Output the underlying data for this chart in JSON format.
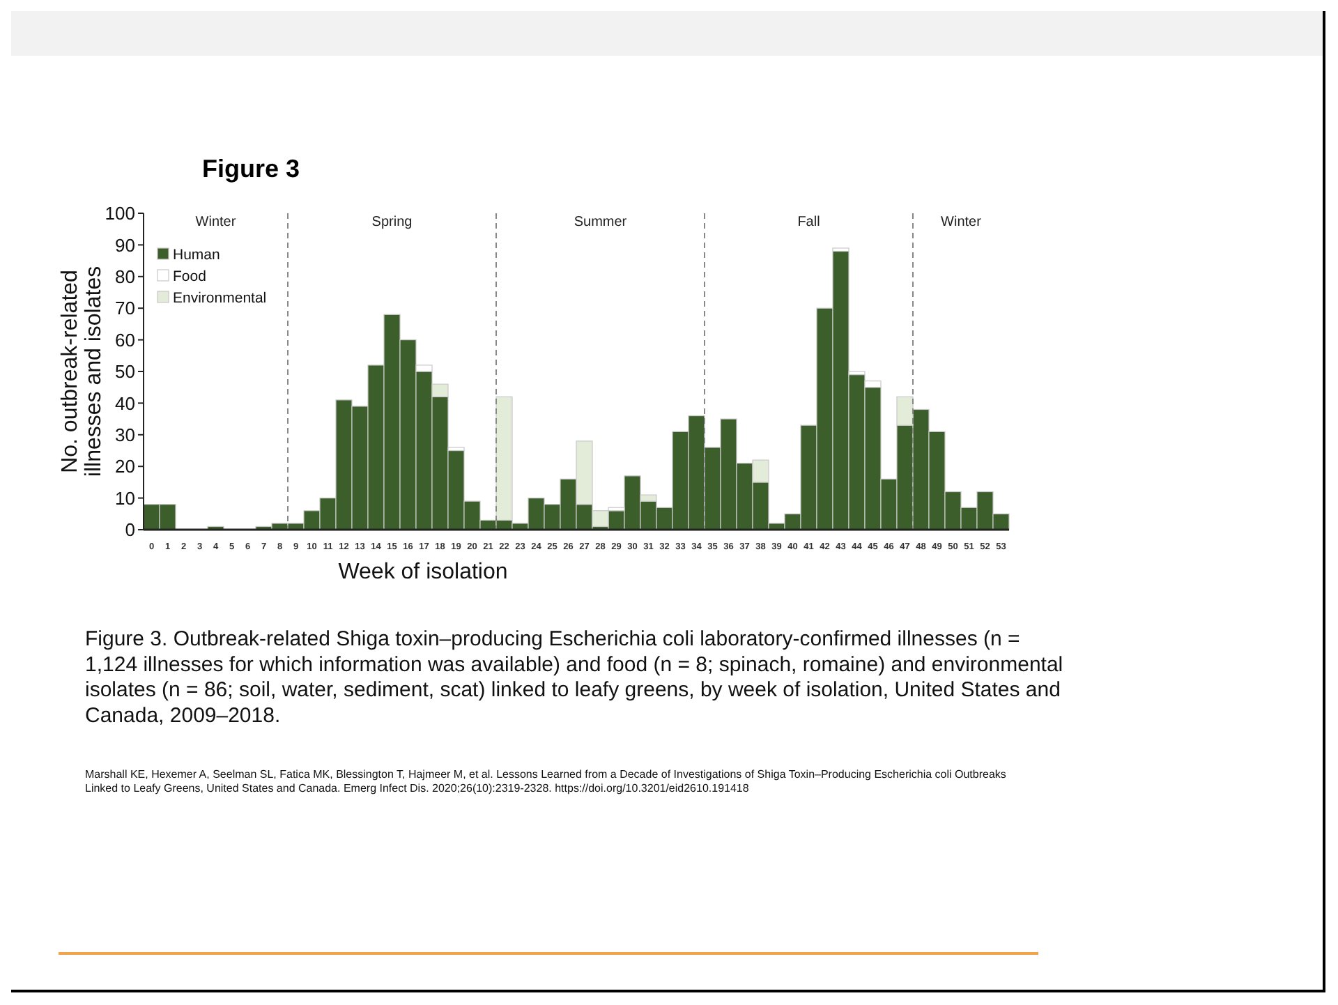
{
  "chart_data": {
    "type": "bar",
    "title": "Figure 3",
    "xlabel": "Week of isolation",
    "ylabel": "No. outbreak-related illnesses and isolates",
    "stacked": true,
    "x": [
      0,
      1,
      2,
      3,
      4,
      5,
      6,
      7,
      8,
      9,
      10,
      11,
      12,
      13,
      14,
      15,
      16,
      17,
      18,
      19,
      20,
      21,
      22,
      23,
      24,
      25,
      26,
      27,
      28,
      29,
      30,
      31,
      32,
      33,
      34,
      35,
      36,
      37,
      38,
      39,
      40,
      41,
      42,
      43,
      44,
      45,
      46,
      47,
      48,
      49,
      50,
      51,
      52,
      53
    ],
    "xlim": [
      -0.5,
      53.5
    ],
    "xticks": [
      0,
      1,
      2,
      3,
      4,
      5,
      6,
      7,
      8,
      9,
      10,
      11,
      12,
      13,
      14,
      15,
      16,
      17,
      18,
      19,
      20,
      21,
      22,
      23,
      24,
      25,
      26,
      27,
      28,
      29,
      30,
      31,
      32,
      33,
      34,
      35,
      36,
      37,
      38,
      39,
      40,
      41,
      42,
      43,
      44,
      45,
      46,
      47,
      48,
      49,
      50,
      51,
      52,
      53
    ],
    "ylim": [
      0,
      100
    ],
    "yticks": [
      0,
      10,
      20,
      30,
      40,
      50,
      60,
      70,
      80,
      90,
      100
    ],
    "series": [
      {
        "name": "Human",
        "color": "#3b5e2b",
        "values": [
          8,
          8,
          0,
          0,
          1,
          0,
          0,
          1,
          2,
          2,
          6,
          10,
          41,
          39,
          52,
          68,
          60,
          50,
          42,
          25,
          9,
          3,
          3,
          2,
          10,
          8,
          16,
          8,
          1,
          6,
          17,
          9,
          7,
          31,
          36,
          26,
          35,
          21,
          15,
          2,
          5,
          33,
          70,
          88,
          49,
          45,
          16,
          33,
          38,
          31,
          12,
          7,
          12,
          5
        ]
      },
      {
        "name": "Food",
        "color": "#ffffff",
        "values": [
          0,
          0,
          0,
          0,
          0,
          0,
          0,
          0,
          0,
          0,
          0,
          0,
          0,
          0,
          0,
          0,
          0,
          2,
          0,
          1,
          0,
          0,
          0,
          0,
          0,
          0,
          0,
          0,
          0,
          1,
          0,
          0,
          0,
          0,
          0,
          0,
          0,
          0,
          0,
          0,
          0,
          0,
          0,
          1,
          1,
          2,
          0,
          0,
          0,
          0,
          0,
          0,
          0,
          0
        ]
      },
      {
        "name": "Environmental",
        "color": "#e2ecd9",
        "values": [
          0,
          0,
          0,
          0,
          0,
          0,
          0,
          0,
          0,
          0,
          0,
          0,
          0,
          0,
          0,
          0,
          0,
          0,
          4,
          0,
          0,
          0,
          39,
          0,
          0,
          0,
          0,
          20,
          5,
          0,
          0,
          2,
          0,
          0,
          0,
          0,
          0,
          0,
          7,
          0,
          0,
          0,
          0,
          0,
          0,
          0,
          0,
          9,
          0,
          0,
          0,
          0,
          0,
          0
        ]
      }
    ],
    "legend": "top left",
    "ref_lines": [
      {
        "axis": "x",
        "value": 8.5,
        "line_style": "dashed",
        "color": "#888888"
      },
      {
        "axis": "x",
        "value": 21.5,
        "line_style": "dashed",
        "color": "#888888"
      },
      {
        "axis": "x",
        "value": 34.5,
        "line_style": "dashed",
        "color": "#888888"
      },
      {
        "axis": "x",
        "value": 47.5,
        "line_style": "dashed",
        "color": "#888888"
      }
    ],
    "annotations": [
      "Winter",
      "Spring",
      "Summer",
      "Fall",
      "Winter",
      "Figure 3. Outbreak-related Shiga toxin–producing Escherichia coli laboratory-confirmed illnesses (n = 1,124 illnesses for which information was available) and food (n = 8; spinach, romaine) and environmental isolates (n = 86; soil, water, sediment, scat) linked to leafy greens, by week of isolation, United States and Canada, 2009–2018.",
      "Marshall KE, Hexemer A, Seelman SL, Fatica MK, Blessington T, Hajmeer M, et al. Lessons Learned from a Decade of Investigations of Shiga Toxin–Producing Escherichia coli Outbreaks Linked to Leafy Greens, United States and Canada. Emerg Infect Dis. 2020;26(10):2319-2328. https://doi.org/10.3201/eid2610.191418"
    ]
  }
}
